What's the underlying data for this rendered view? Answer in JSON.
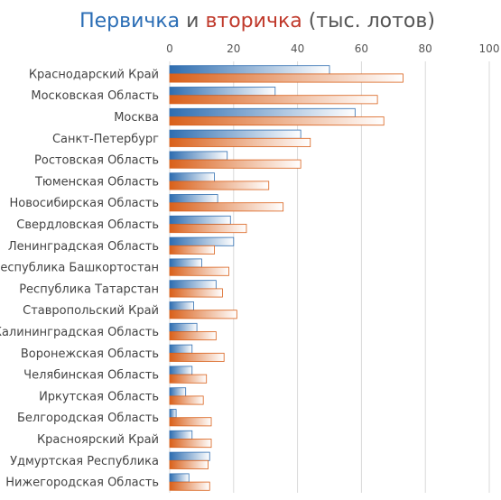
{
  "chart_data": {
    "type": "bar",
    "orientation": "horizontal",
    "title_parts": [
      {
        "text": "Первичка",
        "color": "#2a6db5"
      },
      {
        "text": " и ",
        "color": "#555555"
      },
      {
        "text": "вторичка",
        "color": "#c0392b"
      },
      {
        "text": " (тыс. лотов)",
        "color": "#555555"
      }
    ],
    "xlim": [
      0,
      100
    ],
    "x_ticks": [
      "0",
      "20",
      "40",
      "60",
      "80",
      "100"
    ],
    "x_tick_values": [
      0,
      20,
      40,
      60,
      80,
      100
    ],
    "grid": true,
    "categories": [
      "Краснодарский Край",
      "Московская Область",
      "Москва",
      "Санкт-Петербург",
      "Ростовская Область",
      "Тюменская Область",
      "Новосибирская Область",
      "Свердловская Область",
      "Ленинградская Область",
      "Республика Башкортостан",
      "Республика Татарстан",
      "Ставропольский Край",
      "Калининградская Область",
      "Воронежская Область",
      "Челябинская Область",
      "Иркутская Область",
      "Белгородская Область",
      "Красноярский Край",
      "Удмуртская Республика",
      "Нижегородская Область"
    ],
    "series": [
      {
        "color": "#2e6db0",
        "values": [
          50,
          33,
          58,
          41,
          18,
          14,
          15,
          19,
          20,
          10,
          14.5,
          7.5,
          8.5,
          7,
          7,
          5,
          2,
          7,
          12.5,
          6
        ]
      },
      {
        "color": "#d9601a",
        "values": [
          73,
          65,
          67,
          44,
          41,
          31,
          35.5,
          24,
          14,
          18.5,
          16.5,
          21,
          14.5,
          17,
          11.5,
          10.5,
          13,
          13,
          12,
          12.5
        ]
      }
    ]
  }
}
